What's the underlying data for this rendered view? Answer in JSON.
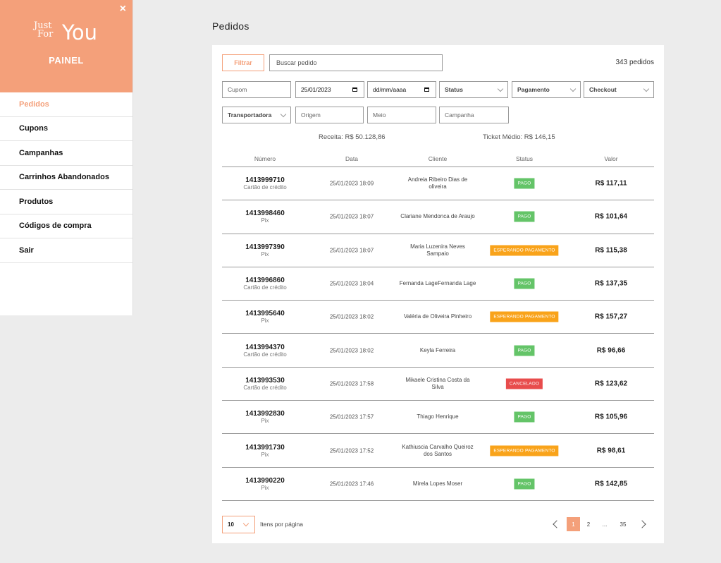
{
  "sidebar": {
    "brand": {
      "just": "Just",
      "for": "For",
      "you": "You",
      "subtitle": "PAINEL"
    },
    "close": "×",
    "items": [
      {
        "label": "Pedidos",
        "active": true
      },
      {
        "label": "Cupons"
      },
      {
        "label": "Campanhas"
      },
      {
        "label": "Carrinhos Abandonados"
      },
      {
        "label": "Produtos"
      },
      {
        "label": "Códigos de compra"
      },
      {
        "label": "Sair"
      }
    ]
  },
  "page": {
    "title": "Pedidos"
  },
  "toolbar": {
    "filter_label": "Filtrar",
    "search_placeholder": "Buscar pedido",
    "count": "343 pedidos"
  },
  "filters": {
    "cupom": "Cupom",
    "date_from": "25/01/2023",
    "date_to": "dd/mm/aaaa",
    "status": "Status",
    "pagamento": "Pagamento",
    "checkout": "Checkout",
    "transportadora": "Transportadora",
    "origem": "Origem",
    "meio": "Meio",
    "campanha": "Campanha"
  },
  "summary": {
    "receita": "Receita: R$ 50.128,86",
    "ticket": "Ticket Médio: R$ 146,15"
  },
  "table": {
    "headers": [
      "Número",
      "Data",
      "Cliente",
      "Status",
      "Valor"
    ],
    "rows": [
      {
        "numero": "1413999710",
        "pagamento": "Cartão de crédito",
        "data": "25/01/2023 18:09",
        "cliente": "Andreia Ribeiro Dias de oliveira",
        "status": "PAGO",
        "valor": "R$ 117,11"
      },
      {
        "numero": "1413998460",
        "pagamento": "Pix",
        "data": "25/01/2023 18:07",
        "cliente": "Clariane Mendonca de Araujo",
        "status": "PAGO",
        "valor": "R$ 101,64"
      },
      {
        "numero": "1413997390",
        "pagamento": "Pix",
        "data": "25/01/2023 18:07",
        "cliente": "Maria Luzenira Neves Sampaio",
        "status": "ESPERANDO PAGAMENTO",
        "valor": "R$ 115,38"
      },
      {
        "numero": "1413996860",
        "pagamento": "Cartão de crédito",
        "data": "25/01/2023 18:04",
        "cliente": "Fernanda LageFernanda Lage",
        "status": "PAGO",
        "valor": "R$ 137,35"
      },
      {
        "numero": "1413995640",
        "pagamento": "Pix",
        "data": "25/01/2023 18:02",
        "cliente": "Valéria de Oliveira Pinheiro",
        "status": "ESPERANDO PAGAMENTO",
        "valor": "R$ 157,27"
      },
      {
        "numero": "1413994370",
        "pagamento": "Cartão de crédito",
        "data": "25/01/2023 18:02",
        "cliente": "Keyla Ferreira",
        "status": "PAGO",
        "valor": "R$ 96,66"
      },
      {
        "numero": "1413993530",
        "pagamento": "Cartão de crédito",
        "data": "25/01/2023 17:58",
        "cliente": "Mikaele Cristina Costa da Silva",
        "status": "CANCELADO",
        "valor": "R$ 123,62"
      },
      {
        "numero": "1413992830",
        "pagamento": "Pix",
        "data": "25/01/2023 17:57",
        "cliente": "Thiago Henrique",
        "status": "PAGO",
        "valor": "R$ 105,96"
      },
      {
        "numero": "1413991730",
        "pagamento": "Pix",
        "data": "25/01/2023 17:52",
        "cliente": "Kathiuscia Carvalho Queiroz dos Santos",
        "status": "ESPERANDO PAGAMENTO",
        "valor": "R$ 98,61"
      },
      {
        "numero": "1413990220",
        "pagamento": "Pix",
        "data": "25/01/2023 17:46",
        "cliente": "Mirela Lopes Moser",
        "status": "PAGO",
        "valor": "R$ 142,85"
      }
    ]
  },
  "pagination": {
    "per_page": "10",
    "per_page_label": "Itens por página",
    "pages": [
      "1",
      "2",
      "...",
      "35"
    ],
    "current": "1"
  },
  "colors": {
    "accent": "#f4a07a",
    "pago": "#64c468",
    "esperando": "#f9a31a",
    "cancelado": "#e84c4c"
  }
}
